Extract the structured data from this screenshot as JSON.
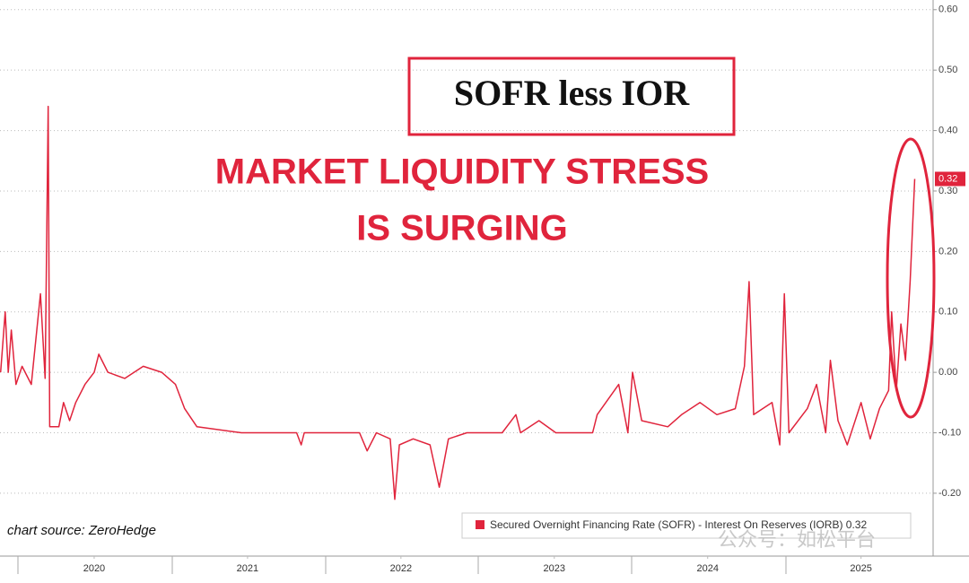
{
  "chart_data": {
    "type": "line",
    "title": "SOFR less IOR",
    "annotations": [
      "MARKET LIQUIDITY STRESS",
      "IS SURGING"
    ],
    "source": "chart source: ZeroHedge",
    "watermark": "公众号：如松平台",
    "last_value_badge": "0.32",
    "x": [
      2019.89,
      2019.92,
      2019.94,
      2019.96,
      2019.99,
      2020.03,
      2020.09,
      2020.15,
      2020.18,
      2020.2,
      2020.21,
      2020.27,
      2020.3,
      2020.34,
      2020.38,
      2020.44,
      2020.5,
      2020.53,
      2020.59,
      2020.7,
      2020.82,
      2020.94,
      2021.03,
      2021.09,
      2021.17,
      2021.46,
      2021.82,
      2021.85,
      2021.87,
      2022.23,
      2022.28,
      2022.34,
      2022.43,
      2022.46,
      2022.49,
      2022.58,
      2022.69,
      2022.75,
      2022.81,
      2022.93,
      2023.16,
      2023.25,
      2023.28,
      2023.4,
      2023.51,
      2023.75,
      2023.78,
      2023.92,
      2023.98,
      2024.01,
      2024.07,
      2024.24,
      2024.33,
      2024.45,
      2024.56,
      2024.68,
      2024.74,
      2024.77,
      2024.8,
      2024.92,
      2024.97,
      2025.0,
      2025.03,
      2025.15,
      2025.21,
      2025.27,
      2025.3,
      2025.35,
      2025.41,
      2025.5,
      2025.56,
      2025.62,
      2025.68,
      2025.7,
      2025.73,
      2025.76,
      2025.79,
      2025.82,
      2025.85
    ],
    "series": [
      {
        "name": "Secured Overnight Financing Rate (SOFR) - Interest On Reserves (IORB) 0.32",
        "color": "#e0243c",
        "values": [
          0.0,
          0.1,
          0.0,
          0.07,
          -0.02,
          0.01,
          -0.02,
          0.13,
          -0.01,
          0.44,
          -0.09,
          -0.09,
          -0.05,
          -0.08,
          -0.05,
          -0.02,
          0.0,
          0.03,
          0.0,
          -0.01,
          0.01,
          0.0,
          -0.02,
          -0.06,
          -0.09,
          -0.1,
          -0.1,
          -0.12,
          -0.1,
          -0.1,
          -0.13,
          -0.1,
          -0.11,
          -0.21,
          -0.12,
          -0.11,
          -0.12,
          -0.19,
          -0.11,
          -0.1,
          -0.1,
          -0.07,
          -0.1,
          -0.08,
          -0.1,
          -0.1,
          -0.07,
          -0.02,
          -0.1,
          0.0,
          -0.08,
          -0.09,
          -0.07,
          -0.05,
          -0.07,
          -0.06,
          0.01,
          0.15,
          -0.07,
          -0.05,
          -0.12,
          0.13,
          -0.1,
          -0.06,
          -0.02,
          -0.1,
          0.02,
          -0.08,
          -0.12,
          -0.05,
          -0.11,
          -0.06,
          -0.03,
          0.1,
          -0.03,
          0.08,
          0.02,
          0.15,
          0.32
        ]
      }
    ],
    "xlim": [
      2019.886,
      2025.97
    ],
    "xticks": [
      {
        "value": 2020.5,
        "label": "2020"
      },
      {
        "value": 2021.5,
        "label": "2021"
      },
      {
        "value": 2022.5,
        "label": "2022"
      },
      {
        "value": 2023.5,
        "label": "2023"
      },
      {
        "value": 2024.5,
        "label": "2024"
      },
      {
        "value": 2025.5,
        "label": "2025"
      }
    ],
    "ylim": [
      -0.304,
      0.616
    ],
    "yticks": [
      {
        "value": 0.6,
        "label": "0.60"
      },
      {
        "value": 0.5,
        "label": "0.50"
      },
      {
        "value": 0.4,
        "label": "0.40"
      },
      {
        "value": 0.3,
        "label": "0.30"
      },
      {
        "value": 0.2,
        "label": "0.20"
      },
      {
        "value": 0.1,
        "label": "0.10"
      },
      {
        "value": 0,
        "label": "0.00"
      },
      {
        "value": -0.1,
        "label": "-0.10"
      },
      {
        "value": -0.2,
        "label": "-0.20"
      }
    ],
    "grid": true
  }
}
